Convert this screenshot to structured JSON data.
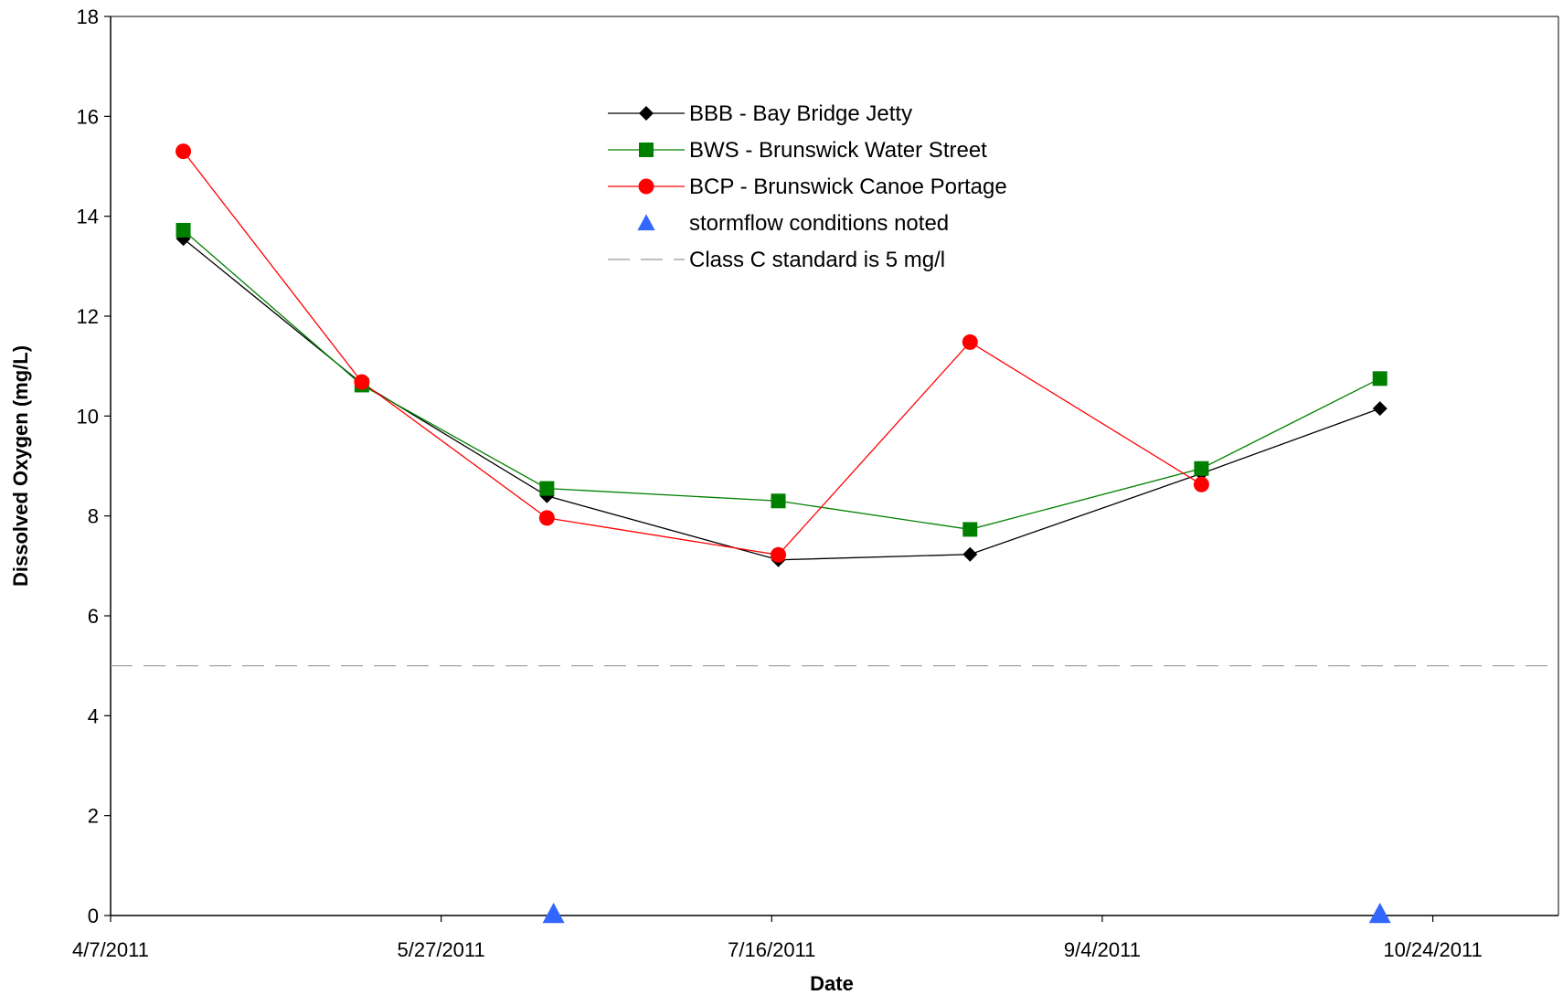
{
  "chart_data": {
    "type": "line",
    "xlabel": "Date",
    "ylabel": "Dissolved Oxygen (mg/L)",
    "ylim": [
      0,
      18
    ],
    "y_ticks": [
      0,
      2,
      4,
      6,
      8,
      10,
      12,
      14,
      16,
      18
    ],
    "xlim": [
      "2011-04-07",
      "2011-11-12"
    ],
    "x_ticks": [
      {
        "date": "2011-04-07",
        "label": "4/7/2011"
      },
      {
        "date": "2011-05-27",
        "label": "5/27/2011"
      },
      {
        "date": "2011-07-16",
        "label": "7/16/2011"
      },
      {
        "date": "2011-09-04",
        "label": "9/4/2011"
      },
      {
        "date": "2011-10-24",
        "label": "10/24/2011"
      }
    ],
    "grid": false,
    "legend_position": "top-center",
    "series": [
      {
        "name": "BBB - Bay Bridge Jetty",
        "color": "#000000",
        "marker": "diamond",
        "points": [
          {
            "x": "2011-04-18",
            "y": 13.55
          },
          {
            "x": "2011-05-15",
            "y": 10.65
          },
          {
            "x": "2011-06-12",
            "y": 8.4
          },
          {
            "x": "2011-07-17",
            "y": 7.12
          },
          {
            "x": "2011-08-15",
            "y": 7.23
          },
          {
            "x": "2011-09-19",
            "y": 8.85
          },
          {
            "x": "2011-10-16",
            "y": 10.15
          }
        ]
      },
      {
        "name": "BWS - Brunswick Water Street",
        "color": "#008000",
        "marker": "square",
        "points": [
          {
            "x": "2011-04-18",
            "y": 13.72
          },
          {
            "x": "2011-05-15",
            "y": 10.62
          },
          {
            "x": "2011-06-12",
            "y": 8.55
          },
          {
            "x": "2011-07-17",
            "y": 8.3
          },
          {
            "x": "2011-08-15",
            "y": 7.73
          },
          {
            "x": "2011-09-19",
            "y": 8.95
          },
          {
            "x": "2011-10-16",
            "y": 10.75
          }
        ]
      },
      {
        "name": "BCP - Brunswick Canoe Portage",
        "color": "#ff0000",
        "marker": "circle",
        "points": [
          {
            "x": "2011-04-18",
            "y": 15.3
          },
          {
            "x": "2011-05-15",
            "y": 10.68
          },
          {
            "x": "2011-06-12",
            "y": 7.96
          },
          {
            "x": "2011-07-17",
            "y": 7.22
          },
          {
            "x": "2011-08-15",
            "y": 11.48
          },
          {
            "x": "2011-09-19",
            "y": 8.63
          }
        ]
      }
    ],
    "stormflow": {
      "name": "stormflow conditions noted",
      "color": "#3366ff",
      "marker": "triangle",
      "points": [
        {
          "x": "2011-06-13",
          "y": 0
        },
        {
          "x": "2011-10-16",
          "y": 0
        }
      ]
    },
    "standard_line": {
      "name": "Class C standard is 5 mg/l",
      "y": 5,
      "color": "#999999",
      "style": "dashed"
    }
  }
}
